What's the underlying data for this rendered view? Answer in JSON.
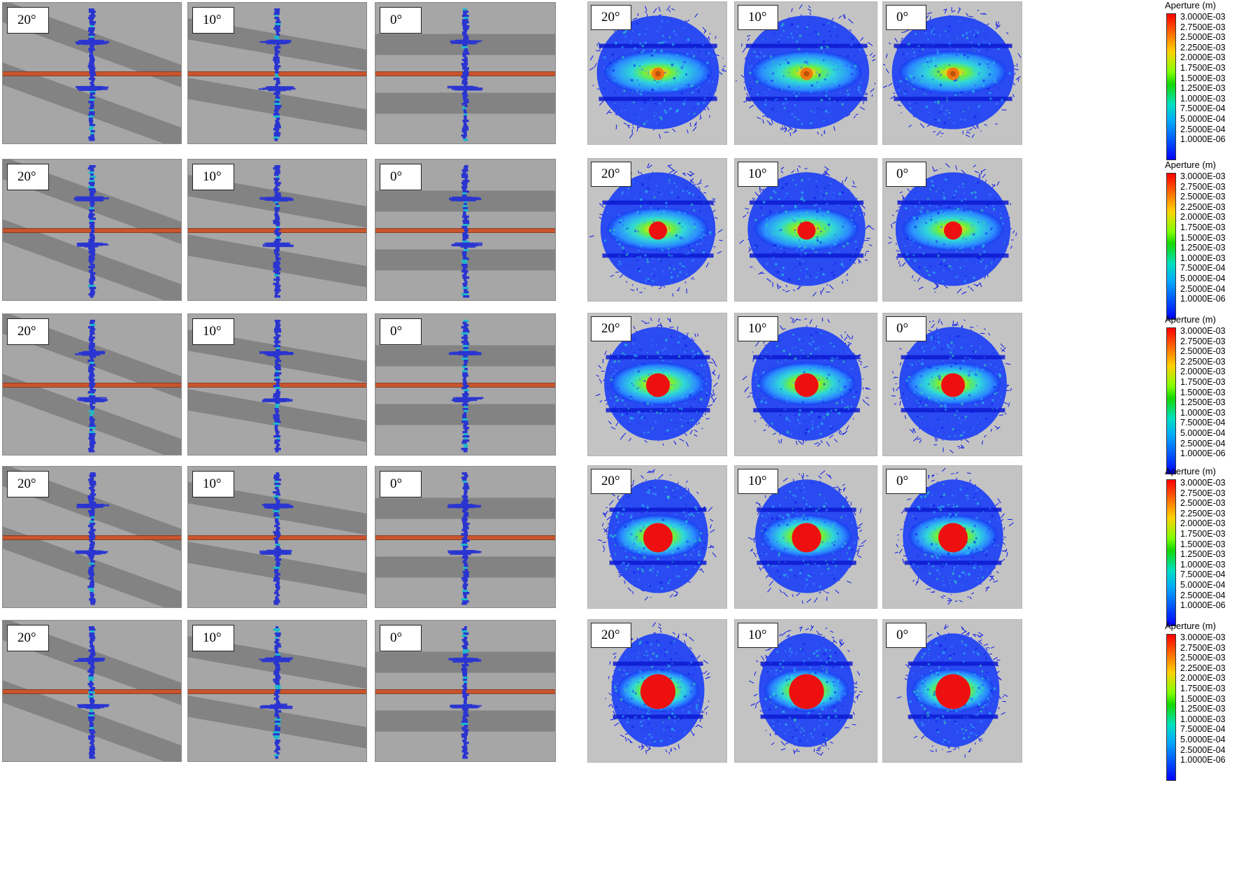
{
  "geometry_rows": [
    {
      "panels": [
        {
          "angle": "20°",
          "tilt": 20
        },
        {
          "angle": "10°",
          "tilt": 10
        },
        {
          "angle": "0°",
          "tilt": 0
        }
      ]
    },
    {
      "panels": [
        {
          "angle": "20°",
          "tilt": 20
        },
        {
          "angle": "10°",
          "tilt": 10
        },
        {
          "angle": "0°",
          "tilt": 0
        }
      ]
    },
    {
      "panels": [
        {
          "angle": "20°",
          "tilt": 20
        },
        {
          "angle": "10°",
          "tilt": 10
        },
        {
          "angle": "0°",
          "tilt": 0
        }
      ]
    },
    {
      "panels": [
        {
          "angle": "20°",
          "tilt": 20
        },
        {
          "angle": "10°",
          "tilt": 10
        },
        {
          "angle": "0°",
          "tilt": 0
        }
      ]
    },
    {
      "panels": [
        {
          "angle": "20°",
          "tilt": 20
        },
        {
          "angle": "10°",
          "tilt": 10
        },
        {
          "angle": "0°",
          "tilt": 0
        }
      ]
    }
  ],
  "aperture_rows": [
    {
      "panels": [
        {
          "angle": "20°"
        },
        {
          "angle": "10°"
        },
        {
          "angle": "0°"
        }
      ]
    },
    {
      "panels": [
        {
          "angle": "20°"
        },
        {
          "angle": "10°"
        },
        {
          "angle": "0°"
        }
      ]
    },
    {
      "panels": [
        {
          "angle": "20°"
        },
        {
          "angle": "10°"
        },
        {
          "angle": "0°"
        }
      ]
    },
    {
      "panels": [
        {
          "angle": "20°"
        },
        {
          "angle": "10°"
        },
        {
          "angle": "0°"
        }
      ]
    },
    {
      "panels": [
        {
          "angle": "20°"
        },
        {
          "angle": "10°"
        },
        {
          "angle": "0°"
        }
      ]
    }
  ],
  "legend": {
    "title": "Aperture (m)",
    "ticks": [
      "3.0000E-03",
      "2.7500E-03",
      "2.5000E-03",
      "2.2500E-03",
      "2.0000E-03",
      "1.7500E-03",
      "1.5000E-03",
      "1.2500E-03",
      "1.0000E-03",
      "7.5000E-04",
      "5.0000E-04",
      "2.5000E-04",
      "1.0000E-06"
    ]
  },
  "colors": {
    "matrix": "#a6a6a6",
    "bedding_layer": "#7f7f7f",
    "wellbore": "#c8552d",
    "fracture": "#2a35d0",
    "aperture_background": "#c3c3c3"
  }
}
